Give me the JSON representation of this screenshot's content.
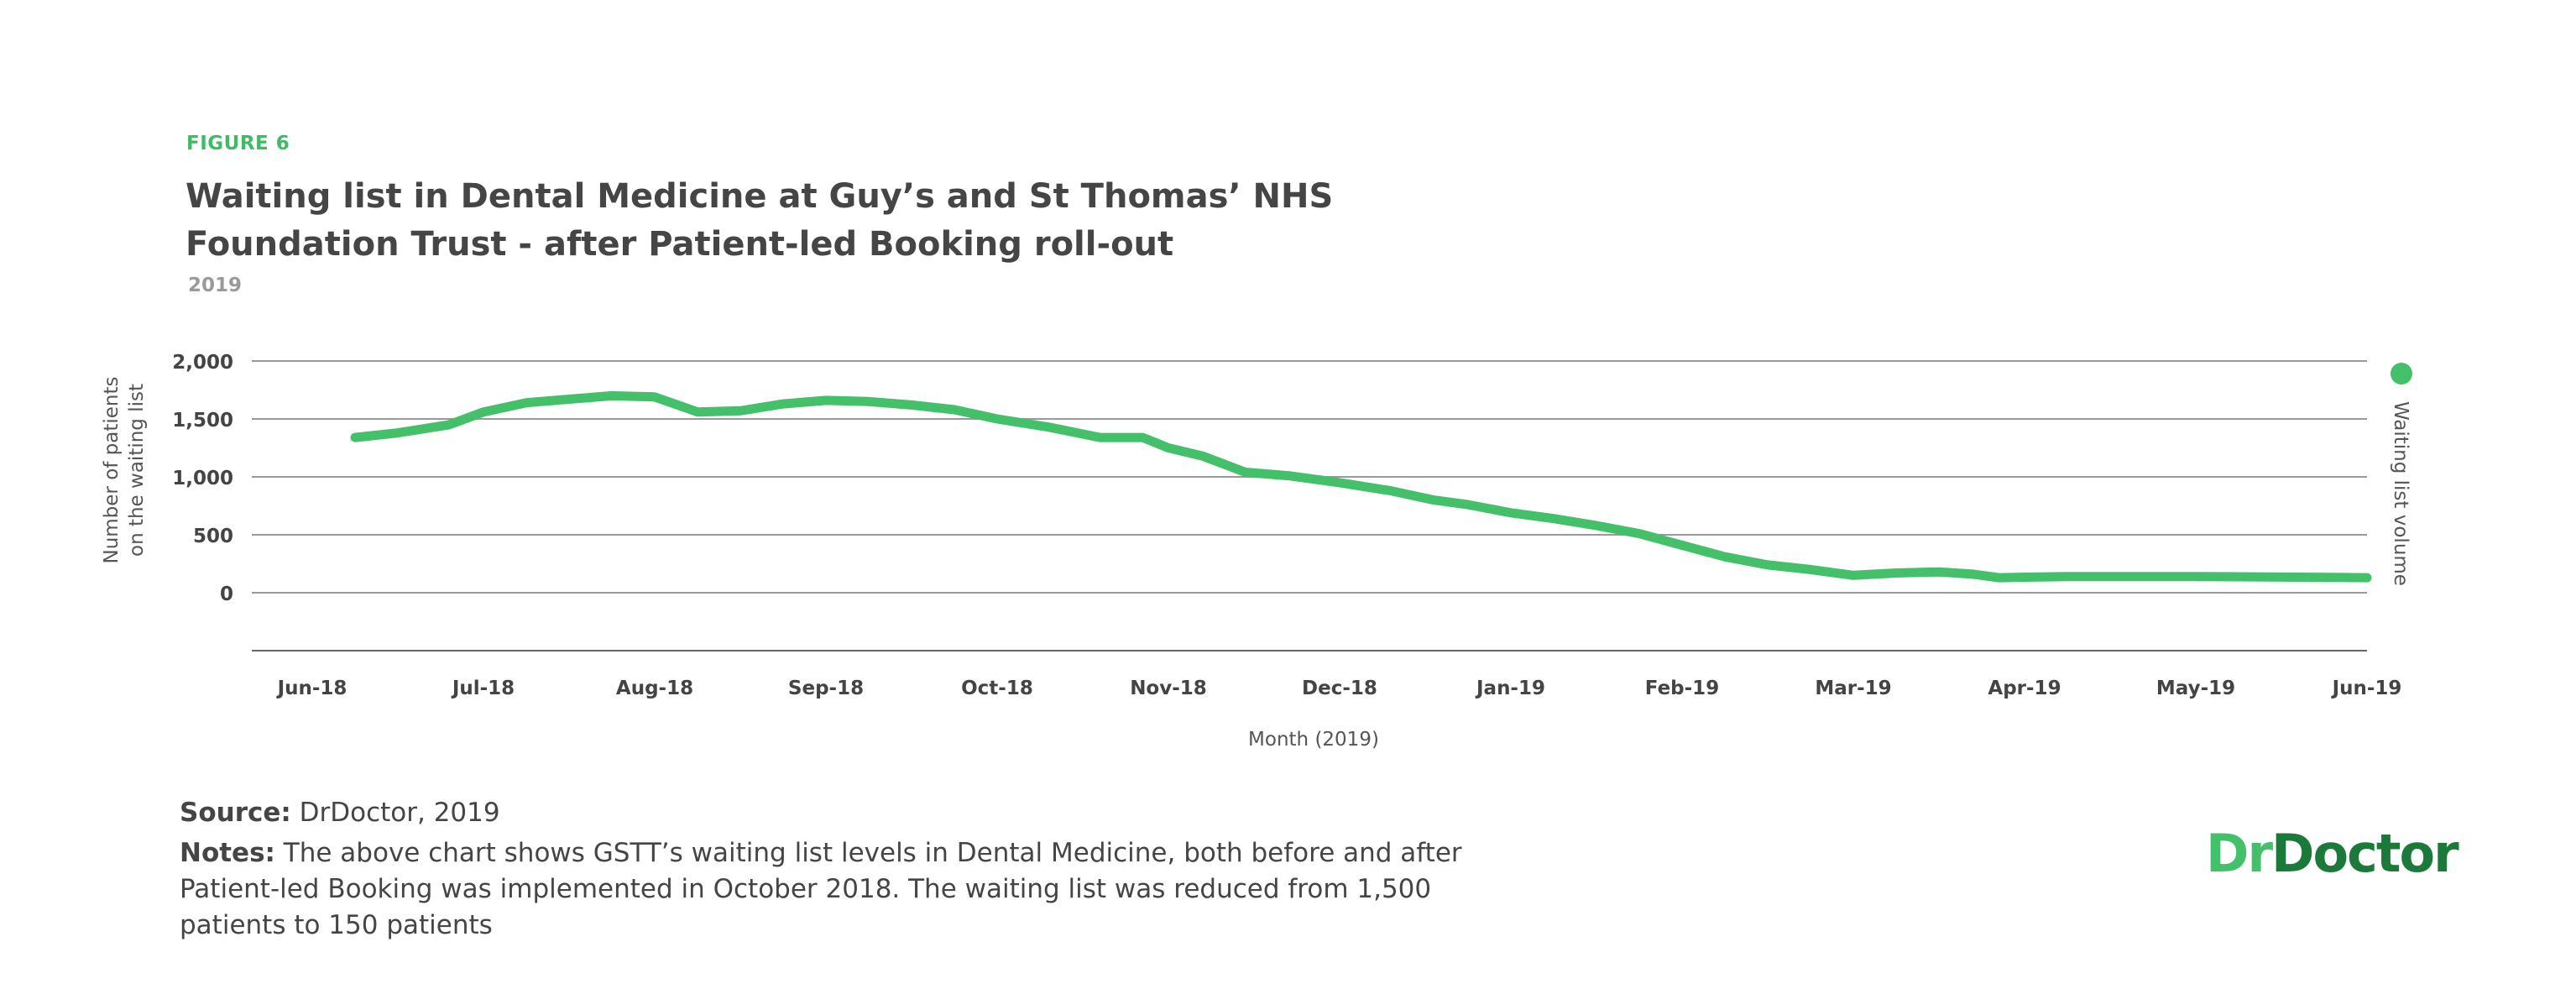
{
  "figure_label": "FIGURE 6",
  "title": "Waiting list in Dental Medicine at Guy’s and St Thomas’ NHS Foundation Trust - after Patient-led Booking roll-out",
  "subtitle": "2019",
  "source": {
    "label": "Source:",
    "text": " DrDoctor, 2019"
  },
  "notes": {
    "label": "Notes:",
    "text": " The above chart shows GSTT’s waiting list levels in Dental Medicine, both before and after Patient-led Booking was implemented in October 2018. The waiting list was reduced from 1,500 patients to 150 patients"
  },
  "logo": {
    "part1": "Dr",
    "part2": "Doctor"
  },
  "colors": {
    "accent": "#45c06a",
    "brand_dark": "#1b7a3a",
    "grid": "#999999"
  },
  "chart_data": {
    "type": "line",
    "ylabel": [
      "Number of patients",
      "on the waiting list"
    ],
    "xlabel": "Month (2019)",
    "ylim": [
      -500,
      2000
    ],
    "yticks": [
      2000,
      1500,
      1000,
      500,
      0
    ],
    "ytick_labels": [
      "2,000",
      "1,500",
      "1,000",
      "500",
      "0"
    ],
    "x_tick_labels": [
      "Jun-18",
      "Jul-18",
      "Aug-18",
      "Sep-18",
      "Oct-18",
      "Nov-18",
      "Dec-18",
      "Jan-19",
      "Feb-19",
      "Mar-19",
      "Apr-19",
      "May-19",
      "Jun-19"
    ],
    "grid": true,
    "legend_position": "right",
    "series": [
      {
        "name": "Waiting list volume",
        "color": "#45c06a",
        "points": [
          [
            0.25,
            1340
          ],
          [
            0.5,
            1380
          ],
          [
            0.8,
            1450
          ],
          [
            1.0,
            1560
          ],
          [
            1.25,
            1640
          ],
          [
            1.5,
            1670
          ],
          [
            1.75,
            1700
          ],
          [
            2.0,
            1690
          ],
          [
            2.25,
            1560
          ],
          [
            2.5,
            1570
          ],
          [
            2.75,
            1630
          ],
          [
            3.0,
            1660
          ],
          [
            3.25,
            1650
          ],
          [
            3.5,
            1620
          ],
          [
            3.75,
            1580
          ],
          [
            4.0,
            1500
          ],
          [
            4.3,
            1430
          ],
          [
            4.6,
            1340
          ],
          [
            4.85,
            1340
          ],
          [
            5.0,
            1250
          ],
          [
            5.2,
            1180
          ],
          [
            5.45,
            1040
          ],
          [
            5.7,
            1010
          ],
          [
            6.0,
            950
          ],
          [
            6.3,
            880
          ],
          [
            6.55,
            800
          ],
          [
            6.75,
            760
          ],
          [
            7.0,
            690
          ],
          [
            7.25,
            640
          ],
          [
            7.5,
            580
          ],
          [
            7.75,
            510
          ],
          [
            8.0,
            410
          ],
          [
            8.25,
            310
          ],
          [
            8.5,
            240
          ],
          [
            8.75,
            200
          ],
          [
            9.0,
            150
          ],
          [
            9.25,
            170
          ],
          [
            9.5,
            180
          ],
          [
            9.7,
            160
          ],
          [
            9.85,
            130
          ],
          [
            10.25,
            140
          ],
          [
            11.0,
            140
          ],
          [
            12.0,
            130
          ]
        ]
      }
    ]
  }
}
